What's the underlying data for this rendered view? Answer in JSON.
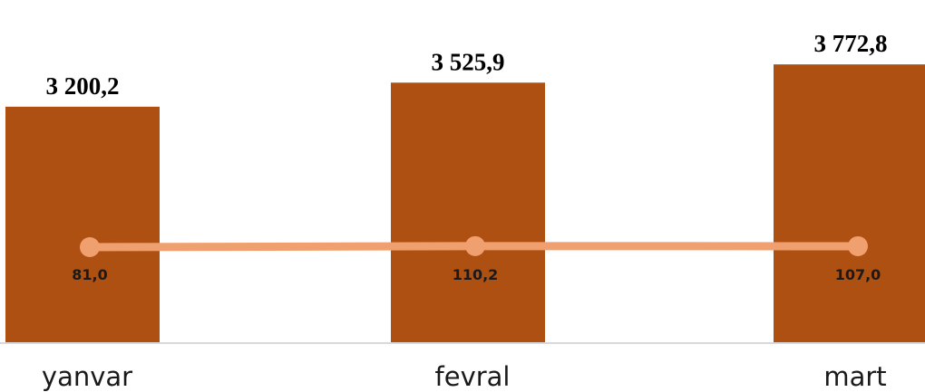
{
  "chart_data": {
    "type": "bar",
    "categories": [
      "yanvar",
      "fevral",
      "mart"
    ],
    "series": [
      {
        "type": "bar",
        "values": [
          3200.2,
          3525.9,
          3772.8
        ],
        "labels": [
          "3 200,2",
          "3 525,9",
          "3 772,8"
        ],
        "color": "#AE5012"
      },
      {
        "type": "line",
        "values": [
          81.0,
          110.2,
          107.0
        ],
        "labels": [
          "81,0",
          "110,2",
          "107,0"
        ],
        "color": "#F0A06E"
      }
    ],
    "grid": false,
    "legend": "none",
    "axis_color": "#D9D9D9"
  }
}
